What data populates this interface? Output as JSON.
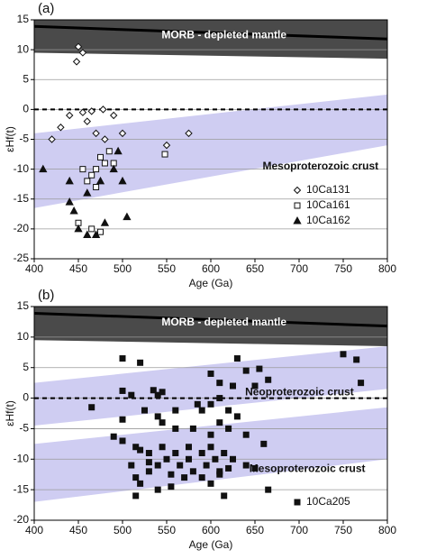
{
  "chart_data": [
    {
      "type": "scatter",
      "label": "(a)",
      "xlabel": "Age (Ga)",
      "ylabel": "εHf(t)",
      "xlim": [
        400,
        800
      ],
      "ylim": [
        -25,
        15
      ],
      "xticks": [
        400,
        450,
        500,
        550,
        600,
        650,
        700,
        750,
        800
      ],
      "yticks": [
        -25,
        -20,
        -15,
        -10,
        -5,
        0,
        5,
        10,
        15
      ],
      "grid": true,
      "reference_line": 0,
      "legend": "lower right",
      "bands": [
        {
          "label": "MORB - depleted mantle",
          "x": [
            400,
            800
          ],
          "upper": [
            15,
            15
          ],
          "lower": [
            9.5,
            8.5
          ],
          "boundary": [
            13.9,
            11.8
          ],
          "color": "#4a4a4a"
        },
        {
          "label": "Mesoproterozoic crust",
          "x": [
            400,
            800
          ],
          "upper": [
            -4,
            2.5
          ],
          "lower": [
            -16.5,
            -6
          ],
          "color": "#cfcdf2"
        }
      ],
      "series": [
        {
          "name": "10Ca131",
          "marker": "diamond-open",
          "color": "#111111",
          "x": [
            450,
            455,
            448,
            440,
            455,
            465,
            478,
            490,
            500,
            550,
            575,
            420,
            430,
            470,
            480,
            460
          ],
          "values": [
            10.5,
            9.5,
            8,
            -1,
            -0.5,
            -0.3,
            0,
            -1,
            -4,
            -6,
            -4,
            -5,
            -3,
            -4,
            -5,
            -2
          ]
        },
        {
          "name": "10Ca161",
          "marker": "square-open",
          "color": "#111111",
          "x": [
            548,
            470,
            475,
            480,
            465,
            460,
            485,
            490,
            470,
            455,
            475,
            465,
            450
          ],
          "values": [
            -7.5,
            -10,
            -8,
            -9,
            -11,
            -12,
            -7,
            -9,
            -13,
            -10,
            -20.5,
            -20,
            -19
          ]
        },
        {
          "name": "10Ca162",
          "marker": "triangle",
          "color": "#111111",
          "x": [
            440,
            445,
            450,
            460,
            470,
            480,
            505,
            500,
            410,
            440,
            460,
            475,
            490,
            495
          ],
          "values": [
            -15.5,
            -17,
            -20,
            -21,
            -21,
            -19,
            -18,
            -12,
            -10,
            -12,
            -14,
            -12,
            -10,
            -7
          ]
        }
      ]
    },
    {
      "type": "scatter",
      "label": "(b)",
      "xlabel": "Age (Ga)",
      "ylabel": "εHf(t)",
      "xlim": [
        400,
        800
      ],
      "ylim": [
        -20,
        15
      ],
      "xticks": [
        400,
        450,
        500,
        550,
        600,
        650,
        700,
        750,
        800
      ],
      "yticks": [
        -20,
        -15,
        -10,
        -5,
        0,
        5,
        10,
        15
      ],
      "grid": true,
      "reference_line": 0,
      "legend": "lower right",
      "bands": [
        {
          "label": "MORB - depleted mantle",
          "x": [
            400,
            800
          ],
          "upper": [
            15,
            15
          ],
          "lower": [
            9.5,
            8.5
          ],
          "boundary": [
            13.9,
            11.8
          ],
          "color": "#4a4a4a"
        },
        {
          "label": "Neoproterozoic crust",
          "x": [
            400,
            800
          ],
          "upper": [
            2.5,
            8.5
          ],
          "lower": [
            -4.5,
            1.5
          ],
          "color": "#cfcdf2"
        },
        {
          "label": "Mesoproterozoic crust",
          "x": [
            400,
            800
          ],
          "upper": [
            -7.5,
            -1.5
          ],
          "lower": [
            -17,
            -10
          ],
          "color": "#cfcdf2"
        }
      ],
      "series": [
        {
          "name": "10Ca205",
          "marker": "square",
          "color": "#111111",
          "x": [
            750,
            765,
            770,
            630,
            600,
            640,
            655,
            665,
            650,
            625,
            610,
            610,
            500,
            520,
            500,
            510,
            535,
            540,
            545,
            465,
            500,
            525,
            540,
            560,
            585,
            590,
            600,
            620,
            630,
            610,
            545,
            560,
            580,
            600,
            620,
            640,
            660,
            490,
            500,
            515,
            520,
            530,
            545,
            560,
            575,
            590,
            600,
            605,
            615,
            625,
            640,
            650,
            530,
            540,
            550,
            565,
            580,
            595,
            610,
            620,
            510,
            515,
            520,
            540,
            555,
            570,
            590,
            600,
            610,
            615,
            665,
            515,
            530,
            575,
            555
          ],
          "values": [
            7.2,
            6.3,
            2.5,
            6.5,
            4,
            4.5,
            4.8,
            3,
            2,
            2,
            2.5,
            0,
            6.5,
            5.8,
            1.2,
            0.5,
            1.3,
            0.5,
            1,
            -1.5,
            -3.5,
            -2,
            -3,
            -2,
            -1,
            -2,
            -1,
            -2,
            -3,
            -4,
            -4,
            -5,
            -5,
            -6,
            -5,
            -6,
            -7.5,
            -6.3,
            -7,
            -8,
            -8.5,
            -9,
            -8,
            -9,
            -8,
            -9,
            -8,
            -10,
            -9,
            -10,
            -11,
            -11.5,
            -10.5,
            -11,
            -10,
            -11,
            -12,
            -11,
            -12,
            -11.5,
            -11,
            -13,
            -14,
            -15,
            -14.5,
            -13,
            -13,
            -14,
            -12.5,
            -16,
            -15,
            -16,
            -12,
            -10,
            -12.5
          ]
        }
      ]
    }
  ]
}
